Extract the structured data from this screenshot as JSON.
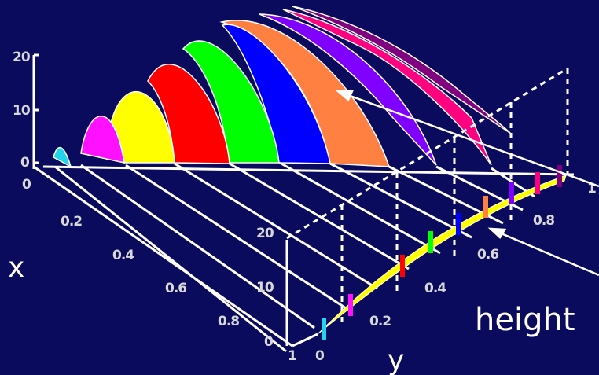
{
  "labels": {
    "x_axis": "x",
    "y_axis": "y",
    "callout": "height"
  },
  "left_z_ticks": [
    "20",
    "10",
    "0"
  ],
  "left_x_ticks": [
    "0",
    "0.2",
    "0.4",
    "0.6",
    "0.8",
    "1"
  ],
  "front_z_ticks": [
    "20",
    "10",
    "0"
  ],
  "front_y_ticks": [
    "0",
    "0.2",
    "0.4",
    "0.6",
    "0.8",
    "1"
  ],
  "slices": [
    {
      "id": "s1",
      "color": "#22d3ee"
    },
    {
      "id": "s2",
      "color": "#ff10ff"
    },
    {
      "id": "s3",
      "color": "#ffff00"
    },
    {
      "id": "s4",
      "color": "#ff0000"
    },
    {
      "id": "s5",
      "color": "#00ff00"
    },
    {
      "id": "s6",
      "color": "#0000ff"
    },
    {
      "id": "s7",
      "color": "#ff8040"
    },
    {
      "id": "s8",
      "color": "#8000ff"
    },
    {
      "id": "s9",
      "color": "#ff0080"
    },
    {
      "id": "s10",
      "color": "#800080"
    }
  ],
  "colors": {
    "background": "#0b0b5e",
    "curve_fill": "#ffff00",
    "grid": "#ffffff"
  }
}
